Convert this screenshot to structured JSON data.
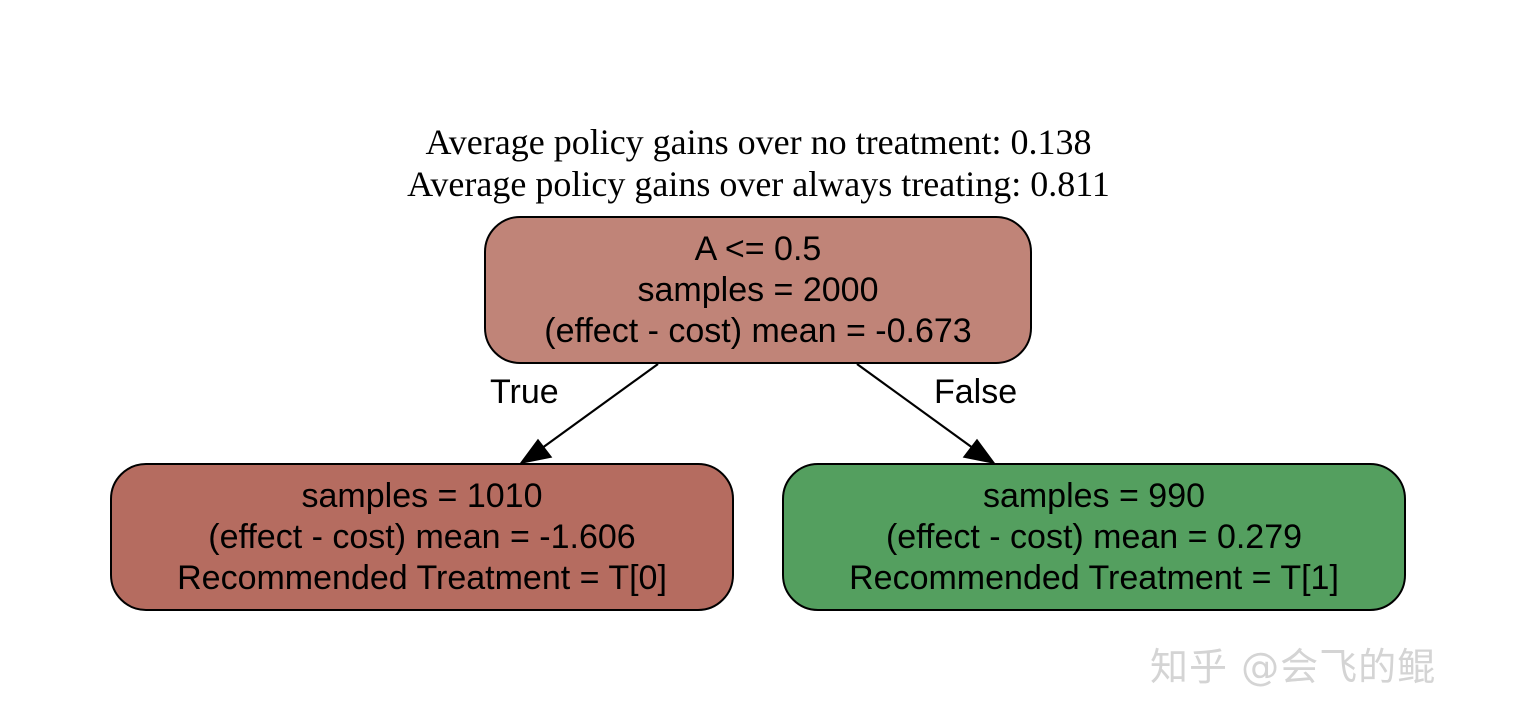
{
  "header": {
    "line1": "Average policy gains over no treatment: 0.138",
    "line2": "Average policy gains over always treating: 0.811"
  },
  "nodes": {
    "root": {
      "line1": "A <= 0.5",
      "line2": "samples = 2000",
      "line3": "(effect - cost) mean = -0.673",
      "fill": "#c08478"
    },
    "left": {
      "line1": "samples = 1010",
      "line2": "(effect - cost) mean = -1.606",
      "line3": "Recommended Treatment = T[0]",
      "fill": "#b56c60"
    },
    "right": {
      "line1": "samples = 990",
      "line2": "(effect - cost) mean = 0.279",
      "line3": "Recommended Treatment = T[1]",
      "fill": "#549f5f"
    }
  },
  "edges": {
    "left_label": "True",
    "right_label": "False"
  },
  "watermark": "知乎 @会飞的鲲"
}
